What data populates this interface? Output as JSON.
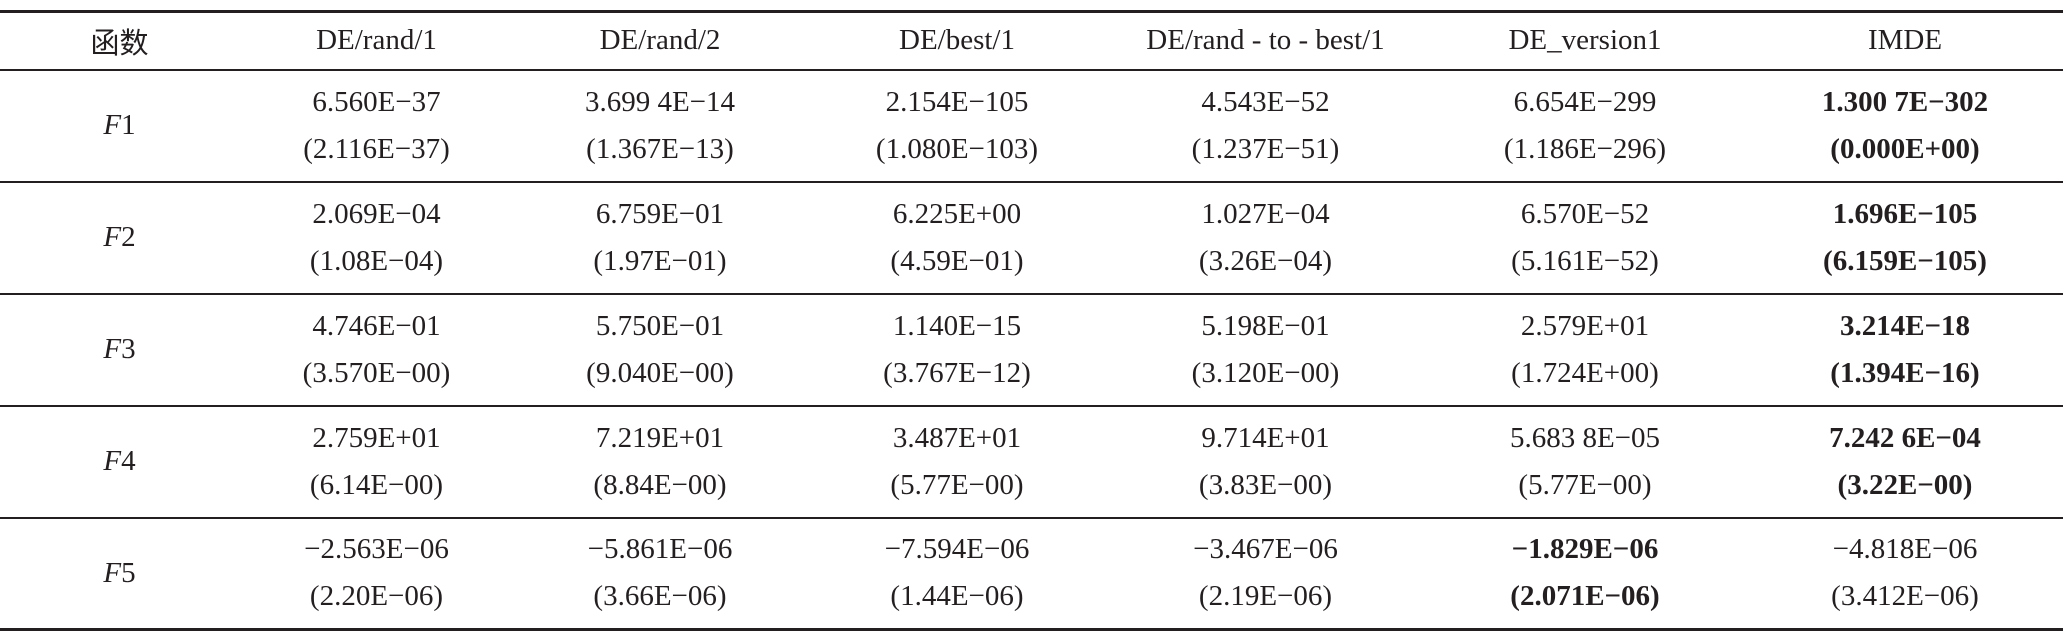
{
  "table": {
    "header": [
      "函数",
      "DE/rand/1",
      "DE/rand/2",
      "DE/best/1",
      "DE/rand - to - best/1",
      "DE_version1",
      "IMDE"
    ],
    "rows": [
      {
        "label": "F1",
        "cells": [
          {
            "mean": "6.560E−37",
            "std": "(2.116E−37)",
            "bold": false
          },
          {
            "mean": "3.699 4E−14",
            "std": "(1.367E−13)",
            "bold": false
          },
          {
            "mean": "2.154E−105",
            "std": "(1.080E−103)",
            "bold": false
          },
          {
            "mean": "4.543E−52",
            "std": "(1.237E−51)",
            "bold": false
          },
          {
            "mean": "6.654E−299",
            "std": "(1.186E−296)",
            "bold": false
          },
          {
            "mean": "1.300 7E−302",
            "std": "(0.000E+00)",
            "bold": true
          }
        ]
      },
      {
        "label": "F2",
        "cells": [
          {
            "mean": "2.069E−04",
            "std": "(1.08E−04)",
            "bold": false
          },
          {
            "mean": "6.759E−01",
            "std": "(1.97E−01)",
            "bold": false
          },
          {
            "mean": "6.225E+00",
            "std": "(4.59E−01)",
            "bold": false
          },
          {
            "mean": "1.027E−04",
            "std": "(3.26E−04)",
            "bold": false
          },
          {
            "mean": "6.570E−52",
            "std": "(5.161E−52)",
            "bold": false
          },
          {
            "mean": "1.696E−105",
            "std": "(6.159E−105)",
            "bold": true
          }
        ]
      },
      {
        "label": "F3",
        "cells": [
          {
            "mean": "4.746E−01",
            "std": "(3.570E−00)",
            "bold": false
          },
          {
            "mean": "5.750E−01",
            "std": "(9.040E−00)",
            "bold": false
          },
          {
            "mean": "1.140E−15",
            "std": "(3.767E−12)",
            "bold": false
          },
          {
            "mean": "5.198E−01",
            "std": "(3.120E−00)",
            "bold": false
          },
          {
            "mean": "2.579E+01",
            "std": "(1.724E+00)",
            "bold": false
          },
          {
            "mean": "3.214E−18",
            "std": "(1.394E−16)",
            "bold": true
          }
        ]
      },
      {
        "label": "F4",
        "cells": [
          {
            "mean": "2.759E+01",
            "std": "(6.14E−00)",
            "bold": false
          },
          {
            "mean": "7.219E+01",
            "std": "(8.84E−00)",
            "bold": false
          },
          {
            "mean": "3.487E+01",
            "std": "(5.77E−00)",
            "bold": false
          },
          {
            "mean": "9.714E+01",
            "std": "(3.83E−00)",
            "bold": false
          },
          {
            "mean": "5.683 8E−05",
            "std": "(5.77E−00)",
            "bold": false
          },
          {
            "mean": "7.242 6E−04",
            "std": "(3.22E−00)",
            "bold": true
          }
        ]
      },
      {
        "label": "F5",
        "cells": [
          {
            "mean": "−2.563E−06",
            "std": "(2.20E−06)",
            "bold": false
          },
          {
            "mean": "−5.861E−06",
            "std": "(3.66E−06)",
            "bold": false
          },
          {
            "mean": "−7.594E−06",
            "std": "(1.44E−06)",
            "bold": false
          },
          {
            "mean": "−3.467E−06",
            "std": "(2.19E−06)",
            "bold": false
          },
          {
            "mean": "−1.829E−06",
            "std": "(2.071E−06)",
            "bold": true
          },
          {
            "mean": "−4.818E−06",
            "std": "(3.412E−06)",
            "bold": false
          }
        ]
      }
    ]
  }
}
